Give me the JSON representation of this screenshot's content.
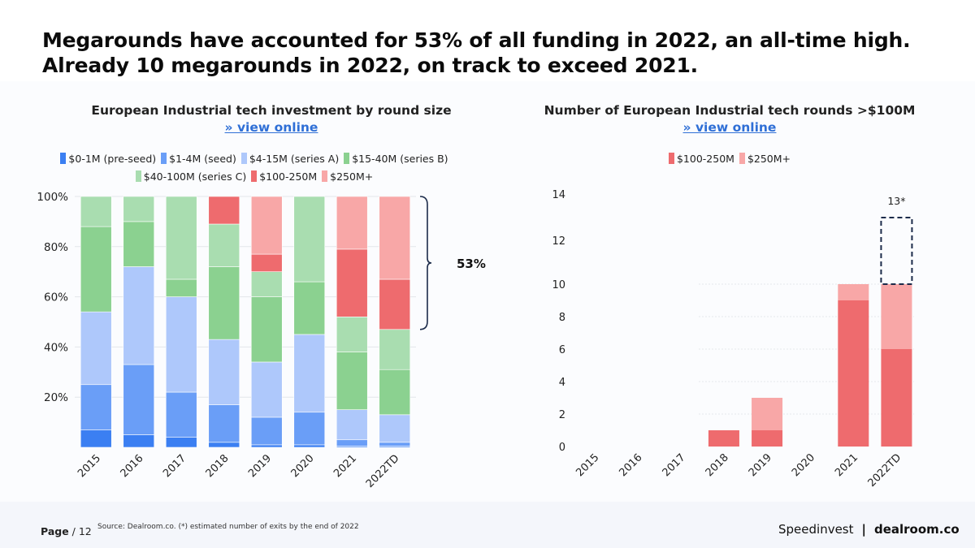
{
  "headline": {
    "line1": "Megarounds have accounted for 53% of all funding in 2022, an all-time high.",
    "line2": "Already 10 megarounds in 2022, on track to exceed 2021."
  },
  "left_chart": {
    "title": "European Industrial tech investment by round size",
    "link": "» view online",
    "legend": [
      {
        "label": "$0-1M (pre-seed)",
        "color": "#3b7ff2"
      },
      {
        "label": "$1-4M (seed)",
        "color": "#6a9ef7"
      },
      {
        "label": "$4-15M (series A)",
        "color": "#aec8fb"
      },
      {
        "label": "$15-40M (series B)",
        "color": "#8bd190"
      },
      {
        "label": "$40-100M (series C)",
        "color": "#a9ddb0"
      },
      {
        "label": "$100-250M",
        "color": "#ee6b6e"
      },
      {
        "label": "$250M+",
        "color": "#f8a7a7"
      }
    ],
    "bracket_label": "53%"
  },
  "right_chart": {
    "title": "Number of European Industrial tech rounds >$100M",
    "link": "» view online",
    "legend": [
      {
        "label": "$100-250M",
        "color": "#ee6b6e"
      },
      {
        "label": "$250M+",
        "color": "#f8a7a7"
      }
    ],
    "projection_label": "13*"
  },
  "chart_data": [
    {
      "type": "bar",
      "stacked": true,
      "normalized": true,
      "title": "European Industrial tech investment by round size",
      "categories": [
        "2015",
        "2016",
        "2017",
        "2018",
        "2019",
        "2020",
        "2021",
        "2022TD"
      ],
      "ylim": [
        0,
        100
      ],
      "yticks": [
        "100%",
        "80%",
        "60%",
        "40%",
        "20%"
      ],
      "series": [
        {
          "name": "$0-1M (pre-seed)",
          "color": "#3b7ff2",
          "values": [
            7,
            5,
            4,
            2,
            1,
            1,
            0.5,
            0.5
          ]
        },
        {
          "name": "$1-4M (seed)",
          "color": "#6a9ef7",
          "values": [
            18,
            28,
            18,
            15,
            11,
            13,
            2.5,
            1.5
          ]
        },
        {
          "name": "$4-15M (series A)",
          "color": "#aec8fb",
          "values": [
            29,
            39,
            38,
            26,
            22,
            31,
            12,
            11
          ]
        },
        {
          "name": "$15-40M (series B)",
          "color": "#8bd190",
          "values": [
            34,
            18,
            7,
            29,
            26,
            21,
            23,
            18
          ]
        },
        {
          "name": "$40-100M (series C)",
          "color": "#a9ddb0",
          "values": [
            12,
            10,
            33,
            17,
            10,
            34,
            14,
            16
          ]
        },
        {
          "name": "$100-250M",
          "color": "#ee6b6e",
          "values": [
            0,
            0,
            0,
            11,
            7,
            0,
            27,
            20
          ]
        },
        {
          "name": "$250M+",
          "color": "#f8a7a7",
          "values": [
            0,
            0,
            0,
            0,
            23,
            0,
            21,
            33
          ]
        }
      ],
      "annotation": {
        "label": "53%",
        "from_pct": 47,
        "to_pct": 100,
        "category": "2022TD"
      }
    },
    {
      "type": "bar",
      "stacked": true,
      "title": "Number of European Industrial tech rounds >$100M",
      "categories": [
        "2015",
        "2016",
        "2017",
        "2018",
        "2019",
        "2020",
        "2021",
        "2022TD"
      ],
      "ylim": [
        0,
        14
      ],
      "yticks": [
        0,
        2,
        4,
        6,
        8,
        10,
        12,
        14
      ],
      "series": [
        {
          "name": "$100-250M",
          "color": "#ee6b6e",
          "values": [
            0,
            0,
            0,
            1,
            1,
            0,
            9,
            6
          ]
        },
        {
          "name": "$250M+",
          "color": "#f8a7a7",
          "values": [
            0,
            0,
            0,
            0,
            2,
            0,
            1,
            4
          ]
        }
      ],
      "projection": {
        "category": "2022TD",
        "value": 13,
        "label": "13*"
      }
    }
  ],
  "footer": {
    "page_label": "Page",
    "page_total": "/ 12",
    "source": "Source: Dealroom.co. (*) estimated number of exits by the end of 2022",
    "brand_left": "Speedinvest",
    "brand_sep": "|",
    "brand_right": "dealroom.co"
  }
}
